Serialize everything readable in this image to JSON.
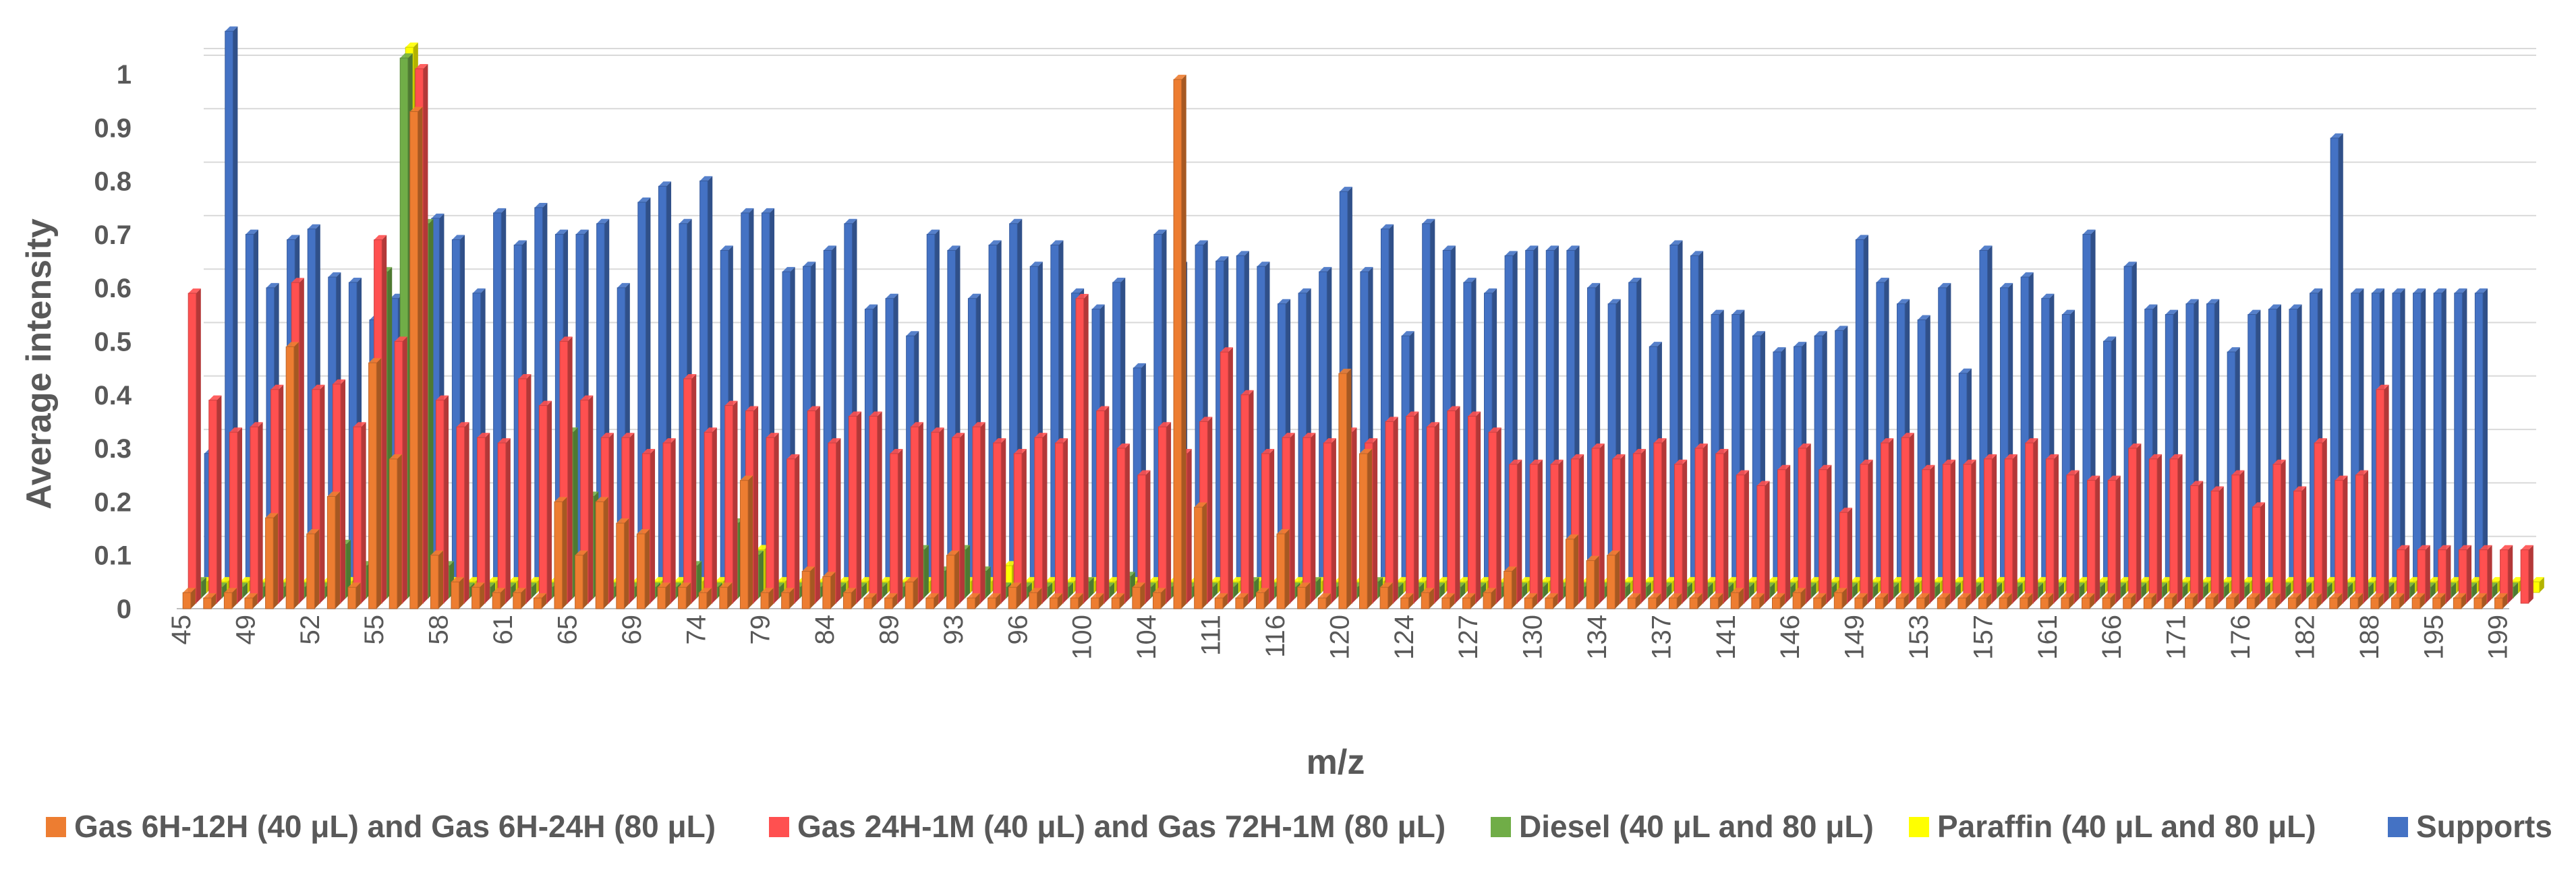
{
  "chart_data": {
    "type": "bar",
    "layout": "3d-depth",
    "title": "",
    "xlabel": "m/z",
    "ylabel": "Average intensity",
    "ylim": [
      0,
      1
    ],
    "yticks": [
      "0",
      "0.1",
      "0.2",
      "0.3",
      "0.4",
      "0.5",
      "0.6",
      "0.7",
      "0.8",
      "0.9",
      "1"
    ],
    "xtick_labels": [
      "45",
      "49",
      "52",
      "55",
      "58",
      "61",
      "65",
      "69",
      "74",
      "79",
      "84",
      "89",
      "93",
      "96",
      "100",
      "104",
      "111",
      "116",
      "120",
      "124",
      "127",
      "130",
      "134",
      "137",
      "141",
      "146",
      "149",
      "153",
      "157",
      "161",
      "166",
      "171",
      "176",
      "182",
      "188",
      "195",
      "199"
    ],
    "legend_position": "bottom",
    "series": [
      {
        "name": "Gas 6H-12H (40 μL) and Gas 6H-24H (80 μL)",
        "color": "#ED7D31",
        "values": [
          0.03,
          0.02,
          0.03,
          0.02,
          0.17,
          0.49,
          0.14,
          0.21,
          0.04,
          0.46,
          0.28,
          0.93,
          0.1,
          0.05,
          0.04,
          0.03,
          0.03,
          0.02,
          0.2,
          0.1,
          0.2,
          0.16,
          0.14,
          0.04,
          0.04,
          0.03,
          0.04,
          0.24,
          0.03,
          0.03,
          0.07,
          0.06,
          0.03,
          0.02,
          0.02,
          0.05,
          0.02,
          0.1,
          0.02,
          0.02,
          0.04,
          0.03,
          0.02,
          0.02,
          0.02,
          0.02,
          0.04,
          0.03,
          0.99,
          0.19,
          0.02,
          0.02,
          0.03,
          0.14,
          0.04,
          0.02,
          0.44,
          0.29,
          0.04,
          0.02,
          0.03,
          0.02,
          0.02,
          0.03,
          0.07,
          0.02,
          0.02,
          0.13,
          0.09,
          0.1,
          0.02,
          0.02,
          0.02,
          0.02,
          0.02,
          0.03,
          0.02,
          0.02,
          0.03,
          0.02,
          0.03,
          0.02,
          0.02,
          0.02,
          0.02,
          0.02,
          0.02,
          0.02,
          0.02,
          0.02,
          0.02,
          0.02,
          0.02,
          0.02,
          0.02,
          0.02,
          0.02,
          0.02,
          0.02,
          0.02,
          0.02,
          0.02,
          0.02,
          0.02,
          0.02,
          0.02,
          0.02,
          0.02,
          0.02,
          0.02,
          0.02,
          0.02,
          0.02
        ]
      },
      {
        "name": "Gas 24H-1M (40 μL) and Gas 72H-1M (80 μL)",
        "color": "#FF5050",
        "values": [
          0.58,
          0.38,
          0.32,
          0.33,
          0.4,
          0.6,
          0.4,
          0.41,
          0.33,
          0.68,
          0.49,
          1.0,
          0.38,
          0.33,
          0.31,
          0.3,
          0.42,
          0.37,
          0.49,
          0.38,
          0.31,
          0.31,
          0.28,
          0.3,
          0.42,
          0.32,
          0.37,
          0.36,
          0.31,
          0.27,
          0.36,
          0.3,
          0.35,
          0.35,
          0.28,
          0.33,
          0.32,
          0.31,
          0.33,
          0.3,
          0.28,
          0.31,
          0.3,
          0.57,
          0.36,
          0.29,
          0.24,
          0.33,
          0.28,
          0.34,
          0.47,
          0.39,
          0.28,
          0.31,
          0.31,
          0.3,
          0.32,
          0.3,
          0.34,
          0.35,
          0.33,
          0.36,
          0.35,
          0.32,
          0.26,
          0.26,
          0.26,
          0.27,
          0.29,
          0.27,
          0.28,
          0.3,
          0.26,
          0.29,
          0.28,
          0.24,
          0.22,
          0.25,
          0.29,
          0.25,
          0.17,
          0.26,
          0.3,
          0.31,
          0.25,
          0.26,
          0.26,
          0.27,
          0.27,
          0.3,
          0.27,
          0.24,
          0.23,
          0.23,
          0.29,
          0.27,
          0.27,
          0.22,
          0.21,
          0.24,
          0.18,
          0.26,
          0.21,
          0.3,
          0.23,
          0.24,
          0.4,
          0.1,
          0.1,
          0.1,
          0.1,
          0.1,
          0.1,
          0.1
        ]
      },
      {
        "name": "Diesel (40 μL and 80 μL)",
        "color": "#70AD47",
        "values": [
          0.03,
          0.02,
          0.02,
          0.02,
          0.02,
          0.02,
          0.02,
          0.1,
          0.06,
          0.61,
          1.01,
          0.7,
          0.06,
          0.02,
          0.02,
          0.02,
          0.02,
          0.02,
          0.31,
          0.19,
          0.02,
          0.02,
          0.02,
          0.02,
          0.06,
          0.02,
          0.14,
          0.08,
          0.02,
          0.02,
          0.02,
          0.02,
          0.02,
          0.02,
          0.02,
          0.09,
          0.05,
          0.09,
          0.05,
          0.02,
          0.02,
          0.02,
          0.02,
          0.03,
          0.02,
          0.04,
          0.02,
          0.02,
          0.02,
          0.02,
          0.02,
          0.03,
          0.02,
          0.02,
          0.03,
          0.02,
          0.02,
          0.03,
          0.02,
          0.02,
          0.02,
          0.02,
          0.02,
          0.02,
          0.02,
          0.02,
          0.02,
          0.02,
          0.02,
          0.02,
          0.02,
          0.02,
          0.02,
          0.02,
          0.02,
          0.02,
          0.02,
          0.02,
          0.02,
          0.02,
          0.02,
          0.02,
          0.02,
          0.02,
          0.02,
          0.02,
          0.02,
          0.02,
          0.02,
          0.02,
          0.02,
          0.02,
          0.02,
          0.02,
          0.02,
          0.02,
          0.02,
          0.02,
          0.02,
          0.02,
          0.02,
          0.02,
          0.02,
          0.02,
          0.02,
          0.02,
          0.02,
          0.02,
          0.02,
          0.02,
          0.02,
          0.02,
          0.02
        ]
      },
      {
        "name": "Paraffin (40 μL and 80 μL)",
        "color": "#FFFF00",
        "values": [
          0.02,
          0.02,
          0.02,
          0.02,
          0.02,
          0.02,
          0.02,
          0.02,
          0.02,
          0.02,
          1.02,
          0.06,
          0.02,
          0.02,
          0.02,
          0.02,
          0.02,
          0.02,
          0.02,
          0.02,
          0.02,
          0.02,
          0.02,
          0.02,
          0.02,
          0.02,
          0.02,
          0.08,
          0.02,
          0.02,
          0.02,
          0.02,
          0.02,
          0.02,
          0.02,
          0.02,
          0.02,
          0.02,
          0.02,
          0.05,
          0.02,
          0.02,
          0.02,
          0.02,
          0.02,
          0.02,
          0.02,
          0.02,
          0.02,
          0.02,
          0.02,
          0.02,
          0.02,
          0.02,
          0.02,
          0.02,
          0.02,
          0.02,
          0.02,
          0.02,
          0.02,
          0.02,
          0.02,
          0.02,
          0.02,
          0.02,
          0.02,
          0.02,
          0.02,
          0.02,
          0.02,
          0.02,
          0.02,
          0.02,
          0.02,
          0.02,
          0.02,
          0.02,
          0.02,
          0.02,
          0.02,
          0.02,
          0.02,
          0.02,
          0.02,
          0.02,
          0.02,
          0.02,
          0.02,
          0.02,
          0.02,
          0.02,
          0.02,
          0.02,
          0.02,
          0.02,
          0.02,
          0.02,
          0.02,
          0.02,
          0.02,
          0.02,
          0.02,
          0.02,
          0.02,
          0.02,
          0.02,
          0.02,
          0.02,
          0.02,
          0.02,
          0.02,
          0.02,
          0.02
        ]
      },
      {
        "name": "Supports",
        "color": "#4472C4",
        "values": [
          0.25,
          1.04,
          0.66,
          0.56,
          0.65,
          0.67,
          0.58,
          0.57,
          0.5,
          0.54,
          0.62,
          0.69,
          0.65,
          0.55,
          0.7,
          0.64,
          0.71,
          0.66,
          0.66,
          0.68,
          0.56,
          0.72,
          0.75,
          0.68,
          0.76,
          0.63,
          0.7,
          0.7,
          0.59,
          0.6,
          0.63,
          0.68,
          0.52,
          0.54,
          0.47,
          0.66,
          0.63,
          0.54,
          0.64,
          0.68,
          0.6,
          0.64,
          0.55,
          0.52,
          0.57,
          0.41,
          0.66,
          0.6,
          0.64,
          0.61,
          0.62,
          0.6,
          0.53,
          0.55,
          0.59,
          0.74,
          0.59,
          0.67,
          0.47,
          0.68,
          0.63,
          0.57,
          0.55,
          0.62,
          0.63,
          0.63,
          0.63,
          0.56,
          0.53,
          0.57,
          0.45,
          0.64,
          0.62,
          0.51,
          0.51,
          0.47,
          0.44,
          0.45,
          0.47,
          0.48,
          0.65,
          0.57,
          0.53,
          0.5,
          0.56,
          0.4,
          0.63,
          0.56,
          0.58,
          0.54,
          0.51,
          0.66,
          0.46,
          0.6,
          0.52,
          0.51,
          0.53,
          0.53,
          0.44,
          0.51,
          0.52,
          0.52,
          0.55,
          0.84,
          0.55,
          0.55,
          0.55,
          0.55,
          0.55,
          0.55,
          0.55
        ]
      }
    ]
  }
}
